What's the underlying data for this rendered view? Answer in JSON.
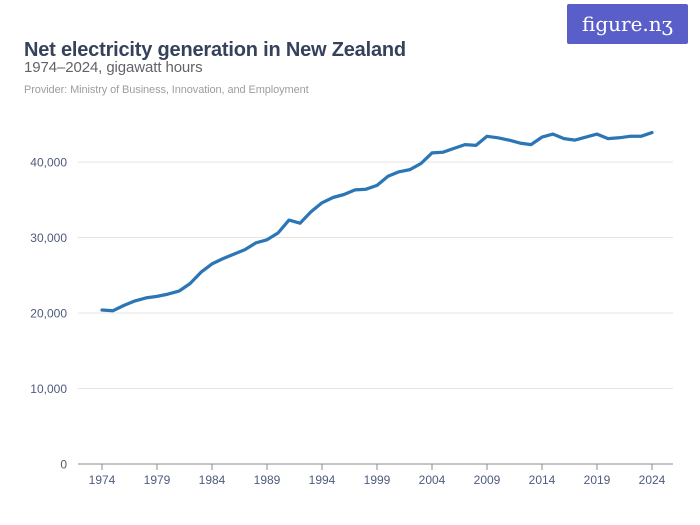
{
  "header": {
    "title": "Net electricity generation in New Zealand",
    "subtitle": "1974–2024, gigawatt hours",
    "provider": "Provider: Ministry of Business, Innovation, and Employment"
  },
  "logo": {
    "text": "figure.nʒ",
    "background": "#5a5ec8",
    "color": "#ffffff"
  },
  "colors": {
    "line": "#2d76b5",
    "grid": "#e4e4e4",
    "axis": "#8b8b8b",
    "tick_label": "#4d5c7c"
  },
  "chart_data": {
    "type": "line",
    "title": "Net electricity generation in New Zealand",
    "subtitle": "1974–2024, gigawatt hours",
    "xlabel": "",
    "ylabel": "gigawatt hours",
    "xlim": [
      1974,
      2024
    ],
    "ylim": [
      0,
      44000
    ],
    "grid": "horizontal",
    "legend": "none",
    "x": [
      1974,
      1975,
      1976,
      1977,
      1978,
      1979,
      1980,
      1981,
      1982,
      1983,
      1984,
      1985,
      1986,
      1987,
      1988,
      1989,
      1990,
      1991,
      1992,
      1993,
      1994,
      1995,
      1996,
      1997,
      1998,
      1999,
      2000,
      2001,
      2002,
      2003,
      2004,
      2005,
      2006,
      2007,
      2008,
      2009,
      2010,
      2011,
      2012,
      2013,
      2014,
      2015,
      2016,
      2017,
      2018,
      2019,
      2020,
      2021,
      2022,
      2023,
      2024
    ],
    "series": [
      {
        "name": "Net electricity generation (GWh)",
        "color": "#2d76b5",
        "values": [
          20400,
          20300,
          21000,
          21600,
          22000,
          22200,
          22500,
          22900,
          23900,
          25400,
          26500,
          27200,
          27800,
          28400,
          29300,
          29700,
          30600,
          32300,
          31900,
          33400,
          34600,
          35300,
          35700,
          36300,
          36400,
          36900,
          38100,
          38700,
          39000,
          39800,
          41200,
          41300,
          41800,
          42300,
          42200,
          43400,
          43200,
          42900,
          42500,
          42300,
          43300,
          43700,
          43100,
          42900,
          43300,
          43700,
          43100,
          43200,
          43400,
          43400,
          43900
        ]
      }
    ],
    "x_ticks": [
      1974,
      1979,
      1984,
      1989,
      1994,
      1999,
      2004,
      2009,
      2014,
      2019,
      2024
    ],
    "x_tick_labels": [
      "1974",
      "1979",
      "1984",
      "1989",
      "1994",
      "1999",
      "2004",
      "2009",
      "2014",
      "2019",
      "2024"
    ],
    "y_ticks": [
      0,
      10000,
      20000,
      30000,
      40000
    ],
    "y_tick_labels": [
      "0",
      "10,000",
      "20,000",
      "30,000",
      "40,000"
    ]
  }
}
